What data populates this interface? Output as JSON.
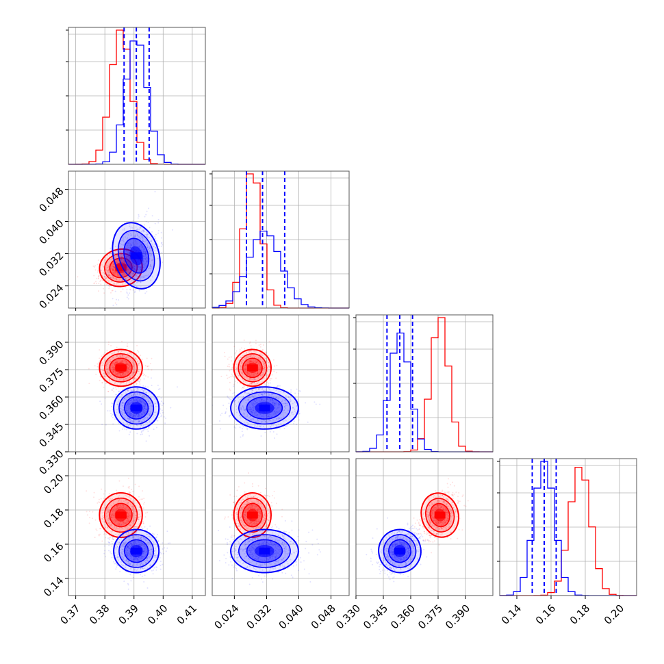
{
  "chart_data": {
    "type": "corner",
    "grid": true,
    "colors": {
      "series_a": "#ff0000",
      "series_b": "#0000ff"
    },
    "params": [
      {
        "range": [
          0.3675,
          0.4145
        ],
        "ticks": [
          0.37,
          0.38,
          0.39,
          0.4,
          0.41
        ],
        "tick_labels": [
          "0.37",
          "0.38",
          "0.39",
          "0.40",
          "0.41"
        ]
      },
      {
        "range": [
          0.0185,
          0.0525
        ],
        "ticks": [
          0.024,
          0.032,
          0.04,
          0.048
        ],
        "tick_labels": [
          "0.024",
          "0.032",
          "0.040",
          "0.048"
        ]
      },
      {
        "range": [
          0.33,
          0.405
        ],
        "ticks": [
          0.33,
          0.345,
          0.36,
          0.375,
          0.39
        ],
        "tick_labels": [
          "0.330",
          "0.345",
          "0.360",
          "0.375",
          "0.390"
        ]
      },
      {
        "range": [
          0.13,
          0.21
        ],
        "ticks": [
          0.14,
          0.16,
          0.18,
          0.2
        ],
        "tick_labels": [
          "0.14",
          "0.16",
          "0.18",
          "0.20"
        ]
      }
    ],
    "series": [
      {
        "color": "#ff0000",
        "mean": [
          0.3855,
          0.0285,
          0.376,
          0.177
        ],
        "sd": [
          0.0035,
          0.0022,
          0.0048,
          0.0062
        ]
      },
      {
        "color": "#0000ff",
        "mean": [
          0.3908,
          0.0315,
          0.354,
          0.156
        ],
        "sd": [
          0.0037,
          0.004,
          0.0055,
          0.006
        ]
      }
    ],
    "quantiles": [
      [
        0.3866,
        0.3908,
        0.3952
      ],
      [
        0.027,
        0.031,
        0.0365
      ],
      [
        0.347,
        0.354,
        0.361
      ],
      [
        0.149,
        0.156,
        0.163
      ]
    ]
  }
}
